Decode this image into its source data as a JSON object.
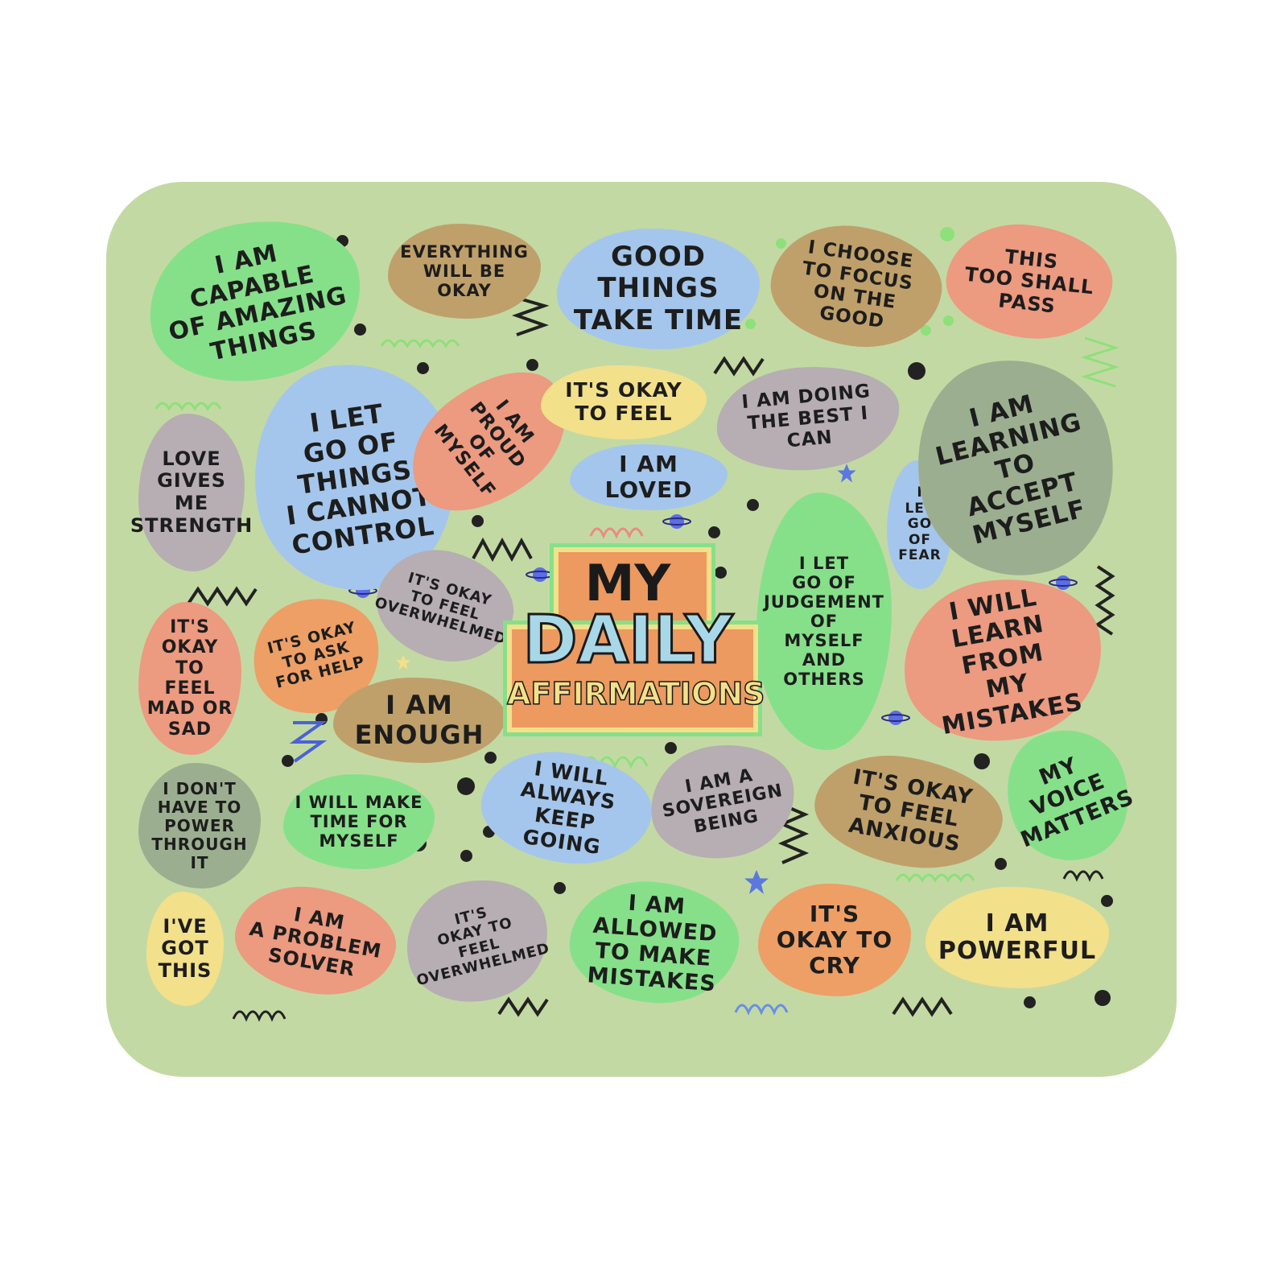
{
  "colors": {
    "mat": "#c3d9a3",
    "green": "#86e08a",
    "tan": "#bfa06a",
    "blue": "#a4c6ec",
    "salmon": "#ec9a80",
    "gray": "#b6aeb2",
    "yellow": "#f3e08a",
    "sage": "#9cae90",
    "orange": "#ed9f66"
  },
  "title": {
    "line1": "MY",
    "line2": "DAILY",
    "line3": "AFFIRMATIONS"
  },
  "affirmations": [
    "I AM\nCAPABLE\nOF AMAZING\nTHINGS",
    "EVERYTHING\nWILL BE\nOKAY",
    "GOOD\nTHINGS\nTAKE TIME",
    "I CHOOSE\nTO FOCUS\nON THE\nGOOD",
    "THIS\nTOO SHALL\nPASS",
    "LOVE\nGIVES\nME\nSTRENGTH",
    "I LET\nGO OF\nTHINGS\nI CANNOT\nCONTROL",
    "I AM PROUD\nOF MYSELF",
    "IT'S OKAY\nTO FEEL",
    "I AM LOVED",
    "I AM DOING\nTHE BEST I CAN",
    "I\nLET\nGO\nOF\nFEAR",
    "I AM\nLEARNING\nTO\nACCEPT\nMYSELF",
    "I LET\nGO OF\nJUDGEMENT\nOF\nMYSELF\nAND\nOTHERS",
    "IT'S OKAY\nTO FEEL\nOVERWHELMED",
    "IT'S\nOKAY TO\nFEEL\nMAD OR\nSAD",
    "IT'S OKAY\nTO ASK\nFOR HELP",
    "I AM\nENOUGH",
    "I WILL\nLEARN FROM\nMY MISTAKES",
    "I DON'T\nHAVE TO\nPOWER\nTHROUGH\nIT",
    "I WILL MAKE\nTIME FOR\nMYSELF",
    "I WILL\nALWAYS KEEP\nGOING",
    "I AM A\nSOVEREIGN\nBEING",
    "IT'S OKAY\nTO FEEL\nANXIOUS",
    "MY\nVOICE\nMATTERS",
    "I'VE\nGOT\nTHIS",
    "I AM\nA PROBLEM\nSOLVER",
    "IT'S\nOKAY TO\nFEEL\nOVERWHELMED",
    "I AM\nALLOWED\nTO MAKE\nMISTAKES",
    "IT'S\nOKAY TO\nCRY",
    "I AM\nPOWERFUL"
  ]
}
